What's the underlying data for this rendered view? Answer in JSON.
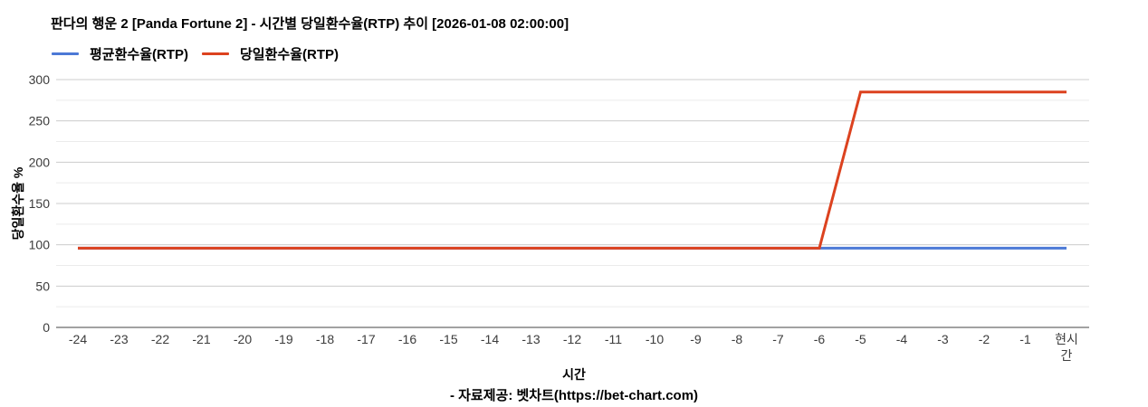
{
  "header": {
    "title": "판다의 행운 2 [Panda Fortune 2] - 시간별 당일환수율(RTP) 추이 [2026-01-08 02:00:00]"
  },
  "legend": {
    "items": [
      {
        "label": "평균환수율(RTP)",
        "color": "#4c79d6"
      },
      {
        "label": "당일환수율(RTP)",
        "color": "#dc421f"
      }
    ]
  },
  "chart_data": {
    "type": "line",
    "title": "판다의 행운 2 [Panda Fortune 2] - 시간별 당일환수율(RTP) 추이 [2026-01-08 02:00:00]",
    "xlabel": "시간",
    "ylabel": "당일환수율 %",
    "categories": [
      "-24",
      "-23",
      "-22",
      "-21",
      "-20",
      "-19",
      "-18",
      "-17",
      "-16",
      "-15",
      "-14",
      "-13",
      "-12",
      "-11",
      "-10",
      "-9",
      "-8",
      "-7",
      "-6",
      "-5",
      "-4",
      "-3",
      "-2",
      "-1",
      "현시간"
    ],
    "series": [
      {
        "name": "평균환수율(RTP)",
        "color": "#4c79d6",
        "values": [
          96,
          96,
          96,
          96,
          96,
          96,
          96,
          96,
          96,
          96,
          96,
          96,
          96,
          96,
          96,
          96,
          96,
          96,
          96,
          96,
          96,
          96,
          96,
          96,
          96
        ]
      },
      {
        "name": "당일환수율(RTP)",
        "color": "#dc421f",
        "values": [
          96,
          96,
          96,
          96,
          96,
          96,
          96,
          96,
          96,
          96,
          96,
          96,
          96,
          96,
          96,
          96,
          96,
          96,
          96,
          285,
          285,
          285,
          285,
          285,
          285
        ]
      }
    ],
    "ylim": [
      0,
      300
    ],
    "yticks": [
      0,
      50,
      100,
      150,
      200,
      250,
      300
    ],
    "minor_grid_step": 25,
    "grid": "horizontal",
    "legend_position": "top-left"
  },
  "footer": {
    "credit": "- 자료제공: 벳차트(https://bet-chart.com)"
  }
}
